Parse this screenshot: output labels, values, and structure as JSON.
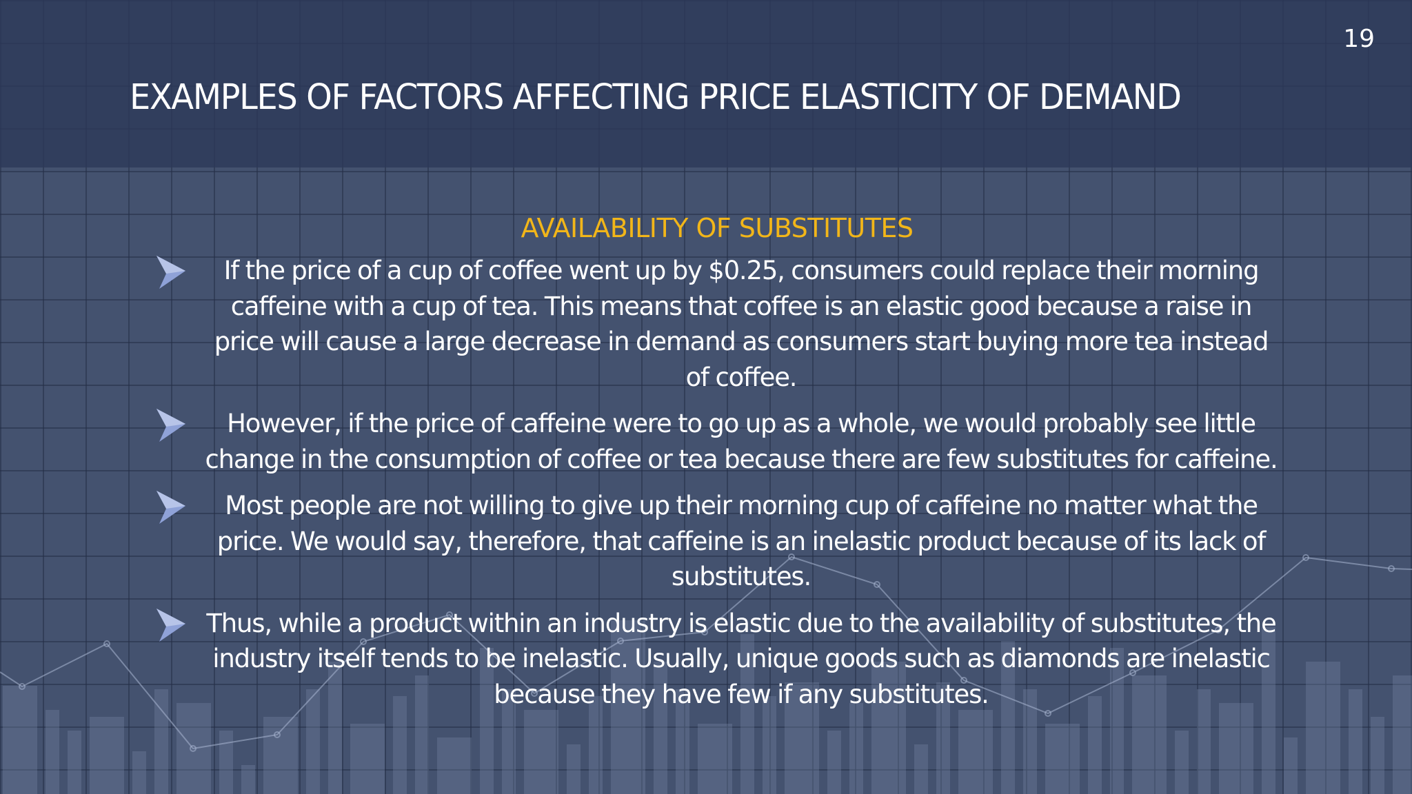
{
  "slide": {
    "number": "19",
    "title": "EXAMPLES OF FACTORS AFFECTING PRICE ELASTICITY OF DEMAND",
    "subheading": "AVAILABILITY OF SUBSTITUTES",
    "bullets": [
      "If the price of a cup of coffee went up by $0.25, consumers could replace their morning caffeine with a cup of tea. This means that coffee is an elastic good because a raise in price will cause a large decrease in demand as consumers start buying more tea instead of coffee.",
      "However, if the price of caffeine were to go up as a whole, we would probably see little change in the consumption of coffee or tea because there are few substitutes for caffeine.",
      "Most people are not willing to give up their morning cup of caffeine no matter what the price. We would say, therefore, that caffeine is an inelastic product because of its lack of substitutes.",
      "Thus, while a product within an industry is elastic due to the availability of substitutes, the industry itself tends to be inelastic. Usually, unique goods such as diamonds are inelastic because they have few if any substitutes."
    ],
    "bullet_icon": "arrowhead-bullet-icon",
    "colors": {
      "background": "#44526f",
      "header_band": "#2c3858",
      "title_text": "#ffffff",
      "subheading": "#f2b619",
      "body_text": "#ffffff",
      "bullet_icon": "#8fa2d8"
    }
  }
}
